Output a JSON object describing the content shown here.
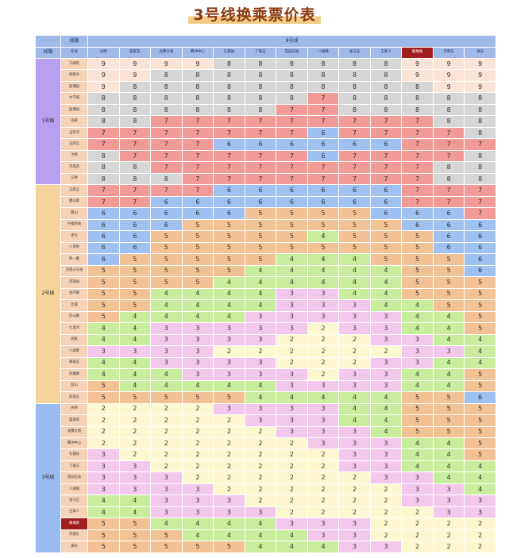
{
  "title": "3号线换乘票价表",
  "header": {
    "line_label": "线路",
    "station_label": "车站",
    "target_line": "9号线",
    "columns": [
      "光明",
      "盛家花",
      "龙腾大道",
      "腾冲中心",
      "礼都站",
      "丁家庄",
      "花园庄站",
      "八湖镇",
      "张马庄",
      "王家人",
      "烟墩路",
      "济南东",
      "满天"
    ],
    "highlight_column": 10
  },
  "groups": [
    {
      "name": "1号线",
      "stations": [
        {
          "name": "工研院",
          "fares": [
            9,
            9,
            9,
            9,
            8,
            8,
            8,
            8,
            8,
            8,
            9,
            9,
            9
          ]
        },
        {
          "name": "创新谷",
          "fares": [
            9,
            9,
            8,
            8,
            8,
            8,
            8,
            8,
            8,
            8,
            9,
            9,
            9
          ]
        },
        {
          "name": "园博园",
          "fares": [
            9,
            8,
            8,
            8,
            8,
            8,
            8,
            8,
            8,
            8,
            8,
            9,
            9
          ]
        },
        {
          "name": "大学城",
          "fares": [
            8,
            8,
            8,
            8,
            8,
            8,
            8,
            7,
            8,
            8,
            8,
            8,
            8
          ]
        },
        {
          "name": "园博园",
          "fares": [
            8,
            8,
            8,
            8,
            8,
            8,
            7,
            7,
            8,
            8,
            8,
            8,
            8
          ]
        },
        {
          "name": "谷家",
          "fares": [
            8,
            8,
            7,
            7,
            7,
            7,
            7,
            7,
            7,
            7,
            7,
            8,
            8
          ]
        },
        {
          "name": "玉符河",
          "fares": [
            7,
            7,
            7,
            7,
            7,
            7,
            7,
            6,
            7,
            7,
            7,
            7,
            8
          ]
        },
        {
          "name": "王府庄",
          "fares": [
            7,
            7,
            7,
            7,
            6,
            6,
            6,
            6,
            6,
            6,
            7,
            7,
            7
          ]
        },
        {
          "name": "大杨",
          "fares": [
            8,
            7,
            7,
            7,
            7,
            7,
            7,
            6,
            7,
            7,
            7,
            7,
            8
          ]
        },
        {
          "name": "济南西",
          "fares": [
            8,
            8,
            7,
            7,
            7,
            7,
            7,
            7,
            7,
            7,
            7,
            8,
            8
          ]
        },
        {
          "name": "方特",
          "fares": [
            8,
            8,
            8,
            7,
            7,
            7,
            7,
            7,
            7,
            7,
            7,
            8,
            8
          ]
        }
      ]
    },
    {
      "name": "2号线",
      "stations": [
        {
          "name": "王府庄",
          "fares": [
            7,
            7,
            7,
            7,
            6,
            6,
            6,
            6,
            6,
            6,
            7,
            7,
            7
          ]
        },
        {
          "name": "腊山南",
          "fares": [
            7,
            7,
            6,
            6,
            6,
            6,
            6,
            6,
            6,
            6,
            7,
            7,
            7
          ]
        },
        {
          "name": "腊山",
          "fares": [
            6,
            6,
            6,
            6,
            6,
            5,
            5,
            5,
            5,
            6,
            6,
            6,
            7
          ]
        },
        {
          "name": "兴福西站",
          "fares": [
            6,
            6,
            6,
            5,
            5,
            5,
            5,
            5,
            5,
            5,
            6,
            6,
            6
          ]
        },
        {
          "name": "老屯",
          "fares": [
            6,
            6,
            5,
            5,
            5,
            5,
            5,
            4,
            5,
            5,
            5,
            6,
            6
          ]
        },
        {
          "name": "八里桥",
          "fares": [
            6,
            6,
            5,
            5,
            5,
            5,
            5,
            5,
            5,
            5,
            5,
            6,
            6
          ]
        },
        {
          "name": "纬一路",
          "fares": [
            6,
            5,
            5,
            5,
            5,
            5,
            4,
            4,
            4,
            5,
            5,
            5,
            6
          ]
        },
        {
          "name": "济南火车站",
          "fares": [
            5,
            5,
            5,
            5,
            5,
            4,
            4,
            4,
            4,
            4,
            5,
            5,
            6
          ]
        },
        {
          "name": "济南站",
          "fares": [
            5,
            5,
            5,
            5,
            4,
            4,
            4,
            4,
            4,
            4,
            5,
            5,
            5
          ]
        },
        {
          "name": "生产路",
          "fares": [
            5,
            5,
            4,
            4,
            4,
            4,
            3,
            3,
            4,
            4,
            5,
            5,
            5
          ]
        },
        {
          "name": "历城",
          "fares": [
            5,
            5,
            4,
            4,
            4,
            4,
            3,
            3,
            3,
            4,
            4,
            5,
            5
          ]
        },
        {
          "name": "历山路",
          "fares": [
            5,
            4,
            4,
            4,
            4,
            3,
            3,
            3,
            3,
            3,
            4,
            4,
            5
          ]
        },
        {
          "name": "七里河",
          "fares": [
            4,
            4,
            3,
            3,
            3,
            3,
            3,
            2,
            3,
            3,
            4,
            4,
            5
          ]
        },
        {
          "name": "闵家",
          "fares": [
            4,
            4,
            3,
            3,
            3,
            3,
            2,
            2,
            2,
            3,
            3,
            4,
            4
          ]
        },
        {
          "name": "八涧堡",
          "fares": [
            3,
            3,
            3,
            3,
            2,
            2,
            2,
            2,
            2,
            2,
            3,
            3,
            4
          ]
        },
        {
          "name": "黄家庄",
          "fares": [
            4,
            4,
            3,
            3,
            3,
            3,
            2,
            2,
            2,
            3,
            3,
            4,
            4
          ]
        },
        {
          "name": "凤凰路",
          "fares": [
            4,
            4,
            4,
            3,
            3,
            3,
            3,
            2,
            3,
            3,
            4,
            4,
            5
          ]
        },
        {
          "name": "彭山",
          "fares": [
            5,
            4,
            4,
            4,
            4,
            4,
            3,
            3,
            3,
            3,
            4,
            4,
            5
          ]
        },
        {
          "name": "彭家庄",
          "fares": [
            5,
            5,
            5,
            5,
            5,
            4,
            4,
            4,
            4,
            4,
            5,
            5,
            6
          ]
        }
      ]
    },
    {
      "name": "3号线",
      "stations": [
        {
          "name": "光明",
          "fares": [
            2,
            2,
            2,
            2,
            3,
            3,
            3,
            3,
            4,
            4,
            5,
            5,
            5
          ]
        },
        {
          "name": "盛家花",
          "fares": [
            2,
            2,
            2,
            2,
            2,
            3,
            3,
            3,
            4,
            4,
            5,
            5,
            5
          ]
        },
        {
          "name": "龙腾大道",
          "fares": [
            2,
            2,
            2,
            2,
            2,
            2,
            3,
            3,
            3,
            4,
            5,
            5,
            5
          ]
        },
        {
          "name": "腾冲中心",
          "fares": [
            2,
            2,
            2,
            2,
            2,
            2,
            2,
            3,
            3,
            3,
            4,
            4,
            5
          ]
        },
        {
          "name": "礼都站",
          "fares": [
            3,
            2,
            2,
            2,
            2,
            2,
            2,
            2,
            3,
            3,
            4,
            4,
            5
          ]
        },
        {
          "name": "丁家庄",
          "fares": [
            3,
            3,
            2,
            2,
            2,
            2,
            2,
            2,
            3,
            3,
            4,
            4,
            4
          ]
        },
        {
          "name": "花园庄站",
          "fares": [
            3,
            3,
            3,
            2,
            2,
            2,
            2,
            2,
            2,
            3,
            3,
            4,
            4
          ]
        },
        {
          "name": "八湖镇",
          "fares": [
            3,
            3,
            3,
            3,
            2,
            2,
            2,
            2,
            2,
            2,
            3,
            3,
            4
          ]
        },
        {
          "name": "张马庄",
          "fares": [
            4,
            4,
            3,
            3,
            3,
            2,
            2,
            2,
            2,
            2,
            3,
            3,
            3
          ]
        },
        {
          "name": "王家人",
          "fares": [
            4,
            4,
            3,
            3,
            3,
            3,
            2,
            2,
            2,
            2,
            2,
            3,
            3
          ]
        },
        {
          "name": "烟墩路",
          "fares": [
            5,
            5,
            4,
            4,
            4,
            4,
            3,
            3,
            3,
            2,
            2,
            2,
            2
          ]
        },
        {
          "name": "济南东",
          "fares": [
            5,
            5,
            5,
            4,
            4,
            4,
            4,
            3,
            3,
            2,
            2,
            2,
            2
          ]
        },
        {
          "name": "满天",
          "fares": [
            5,
            5,
            5,
            5,
            5,
            4,
            4,
            4,
            3,
            3,
            2,
            2,
            2
          ]
        }
      ],
      "highlight_station": 10
    }
  ],
  "colors": {
    "header_blue": "#9fb9e8",
    "highlight_red": "#a01e1e",
    "group_purple": "#b99ff0",
    "group_orange": "#f7d49b",
    "group_blue": "#9bbcf0",
    "fare_2": "#fdf8cf",
    "fare_3": "#f3c8ec",
    "fare_4": "#c8ed9d",
    "fare_5": "#f3c294",
    "fare_6": "#9ec1f2",
    "fare_7": "#f29a96",
    "fare_8": "#d6d6d6",
    "fare_9": "#fbe3d6"
  }
}
